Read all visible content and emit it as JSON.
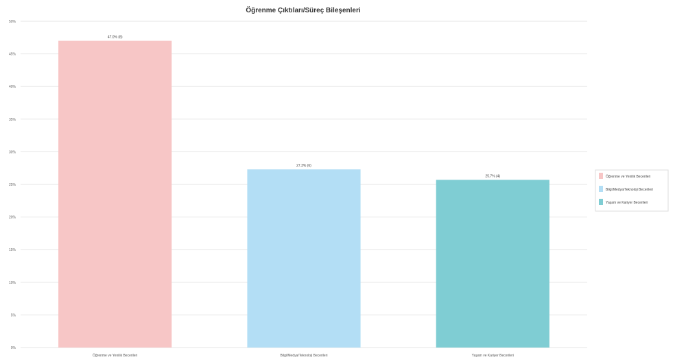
{
  "chart_data": {
    "type": "bar",
    "title": "Öğrenme Çıktıları/Süreç Bileşenleri",
    "xlabel": "",
    "ylabel": "",
    "categories": [
      "Öğrenme ve Yenilik Becerileri",
      "Bilgi/Medya/Teknoloji Becerileri",
      "Yaşam ve Kariyer Becerileri"
    ],
    "values": [
      47.0,
      27.3,
      25.7
    ],
    "data_labels": [
      "47.0% (8)",
      "27.3% (6)",
      "25.7% (4)"
    ],
    "colors": [
      "#f7c6c6",
      "#b3def5",
      "#7fcdd3"
    ],
    "ylim": [
      0,
      50
    ],
    "y_ticks": [
      "0%",
      "5%",
      "10%",
      "15%",
      "20%",
      "25%",
      "30%",
      "35%",
      "40%",
      "45%",
      "50%"
    ],
    "grid": true,
    "legend_position": "right",
    "legend": [
      "Öğrenme ve Yenilik Becerileri",
      "Bilgi/Medya/Teknoloji Becerileri",
      "Yaşam ve Kariyer Becerileri"
    ]
  }
}
